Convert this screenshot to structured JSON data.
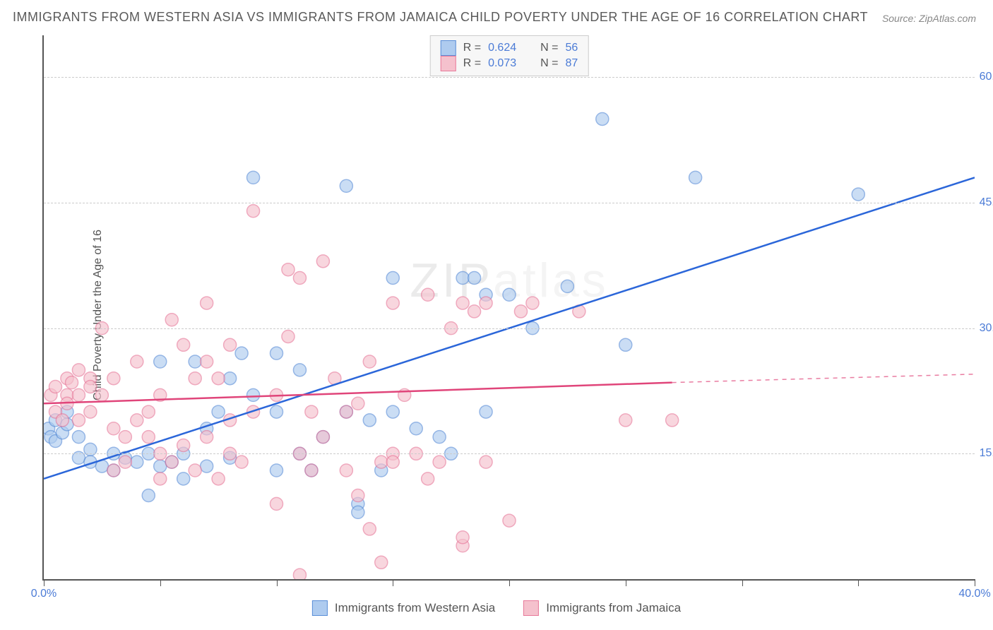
{
  "title": "IMMIGRANTS FROM WESTERN ASIA VS IMMIGRANTS FROM JAMAICA CHILD POVERTY UNDER THE AGE OF 16 CORRELATION CHART",
  "source": "Source: ZipAtlas.com",
  "ylabel": "Child Poverty Under the Age of 16",
  "watermark_zip": "ZIP",
  "watermark_atlas": "atlas",
  "chart": {
    "type": "scatter",
    "xlim": [
      0,
      40
    ],
    "ylim": [
      0,
      65
    ],
    "xtick_positions": [
      0,
      5,
      10,
      15,
      20,
      25,
      30,
      35,
      40
    ],
    "xtick_labels_shown": {
      "0": "0.0%",
      "40": "40.0%"
    },
    "ytick_positions": [
      15,
      30,
      45,
      60
    ],
    "ytick_labels": [
      "15.0%",
      "30.0%",
      "45.0%",
      "60.0%"
    ],
    "background_color": "#ffffff",
    "grid_color": "#cccccc",
    "axis_color": "#555555",
    "series": [
      {
        "name": "Immigrants from Western Asia",
        "marker_fill": "#aecbef",
        "marker_stroke": "#5b8fd8",
        "marker_opacity": 0.65,
        "marker_radius": 9,
        "line_color": "#2b66d9",
        "line_width": 2.5,
        "R": 0.624,
        "N": 56,
        "regression": {
          "x1": 0,
          "y1": 12,
          "x2": 40,
          "y2": 48
        },
        "points": [
          [
            0.2,
            18
          ],
          [
            0.3,
            17
          ],
          [
            0.5,
            19
          ],
          [
            0.5,
            16.5
          ],
          [
            0.8,
            17.5
          ],
          [
            1,
            18.5
          ],
          [
            1,
            20
          ],
          [
            1.5,
            17
          ],
          [
            1.5,
            14.5
          ],
          [
            2,
            15.5
          ],
          [
            2,
            14
          ],
          [
            2.5,
            13.5
          ],
          [
            3,
            15
          ],
          [
            3,
            13
          ],
          [
            3.5,
            14.5
          ],
          [
            4,
            14
          ],
          [
            4.5,
            15
          ],
          [
            4.5,
            10
          ],
          [
            5,
            13.5
          ],
          [
            5,
            26
          ],
          [
            5.5,
            14
          ],
          [
            6,
            12
          ],
          [
            6,
            15
          ],
          [
            6.5,
            26
          ],
          [
            7,
            13.5
          ],
          [
            7,
            18
          ],
          [
            7.5,
            20
          ],
          [
            8,
            14.5
          ],
          [
            8,
            24
          ],
          [
            8.5,
            27
          ],
          [
            9,
            22
          ],
          [
            9,
            48
          ],
          [
            10,
            20
          ],
          [
            10,
            27
          ],
          [
            10,
            13
          ],
          [
            11,
            25
          ],
          [
            11,
            15
          ],
          [
            11.5,
            13
          ],
          [
            12,
            17
          ],
          [
            13,
            47
          ],
          [
            13,
            20
          ],
          [
            13.5,
            9
          ],
          [
            13.5,
            8
          ],
          [
            14,
            19
          ],
          [
            14.5,
            13
          ],
          [
            15,
            20
          ],
          [
            15,
            36
          ],
          [
            16,
            18
          ],
          [
            17,
            17
          ],
          [
            17.5,
            15
          ],
          [
            18,
            36
          ],
          [
            18.5,
            36
          ],
          [
            19,
            34
          ],
          [
            19,
            20
          ],
          [
            20,
            34
          ],
          [
            21,
            30
          ],
          [
            22.5,
            35
          ],
          [
            24,
            55
          ],
          [
            25,
            28
          ],
          [
            28,
            48
          ],
          [
            35,
            46
          ]
        ]
      },
      {
        "name": "Immigrants from Jamaica",
        "marker_fill": "#f5c1cd",
        "marker_stroke": "#e87a9b",
        "marker_opacity": 0.65,
        "marker_radius": 9,
        "line_color": "#e0457a",
        "line_width": 2.5,
        "R": 0.073,
        "N": 87,
        "regression": {
          "x1": 0,
          "y1": 21,
          "x2": 27,
          "y2": 23.5
        },
        "regression_dashed": {
          "x1": 27,
          "y1": 23.5,
          "x2": 40,
          "y2": 24.5
        },
        "points": [
          [
            0.3,
            22
          ],
          [
            0.5,
            20
          ],
          [
            0.5,
            23
          ],
          [
            0.8,
            19
          ],
          [
            1,
            22
          ],
          [
            1,
            24
          ],
          [
            1,
            21
          ],
          [
            1.2,
            23.5
          ],
          [
            1.5,
            25
          ],
          [
            1.5,
            22
          ],
          [
            1.5,
            19
          ],
          [
            2,
            20
          ],
          [
            2,
            24
          ],
          [
            2,
            23
          ],
          [
            2.5,
            22
          ],
          [
            2.5,
            30
          ],
          [
            3,
            24
          ],
          [
            3,
            18
          ],
          [
            3,
            13
          ],
          [
            3.5,
            17
          ],
          [
            3.5,
            14
          ],
          [
            4,
            26
          ],
          [
            4,
            19
          ],
          [
            4.5,
            20
          ],
          [
            4.5,
            17
          ],
          [
            5,
            15
          ],
          [
            5,
            12
          ],
          [
            5,
            22
          ],
          [
            5.5,
            31
          ],
          [
            5.5,
            14
          ],
          [
            6,
            28
          ],
          [
            6,
            16
          ],
          [
            6.5,
            24
          ],
          [
            6.5,
            13
          ],
          [
            7,
            26
          ],
          [
            7,
            17
          ],
          [
            7,
            33
          ],
          [
            7.5,
            24
          ],
          [
            7.5,
            12
          ],
          [
            8,
            15
          ],
          [
            8,
            28
          ],
          [
            8,
            19
          ],
          [
            8.5,
            14
          ],
          [
            9,
            20
          ],
          [
            9,
            44
          ],
          [
            10,
            22
          ],
          [
            10,
            9
          ],
          [
            10.5,
            29
          ],
          [
            10.5,
            37
          ],
          [
            11,
            15
          ],
          [
            11,
            36
          ],
          [
            11,
            0.5
          ],
          [
            11.5,
            20
          ],
          [
            11.5,
            13
          ],
          [
            12,
            17
          ],
          [
            12,
            38
          ],
          [
            12.5,
            24
          ],
          [
            13,
            13
          ],
          [
            13,
            20
          ],
          [
            13.5,
            10
          ],
          [
            13.5,
            21
          ],
          [
            14,
            6
          ],
          [
            14,
            26
          ],
          [
            14.5,
            14
          ],
          [
            14.5,
            2
          ],
          [
            15,
            15
          ],
          [
            15,
            33
          ],
          [
            15,
            14
          ],
          [
            15.5,
            22
          ],
          [
            16,
            15
          ],
          [
            16.5,
            12
          ],
          [
            16.5,
            34
          ],
          [
            17,
            14
          ],
          [
            17.5,
            30
          ],
          [
            18,
            4
          ],
          [
            18,
            5
          ],
          [
            18,
            33
          ],
          [
            18.5,
            32
          ],
          [
            19,
            14
          ],
          [
            19,
            33
          ],
          [
            20,
            7
          ],
          [
            20.5,
            32
          ],
          [
            21,
            33
          ],
          [
            23,
            32
          ],
          [
            25,
            19
          ],
          [
            27,
            19
          ]
        ]
      }
    ],
    "legend_box": {
      "rows": [
        {
          "swatch_fill": "#aecbef",
          "swatch_stroke": "#5b8fd8",
          "r_label": "R =",
          "r_val": "0.624",
          "n_label": "N =",
          "n_val": "56"
        },
        {
          "swatch_fill": "#f5c1cd",
          "swatch_stroke": "#e87a9b",
          "r_label": "R =",
          "r_val": "0.073",
          "n_label": "N =",
          "n_val": "87"
        }
      ]
    },
    "bottom_legend": [
      {
        "swatch_fill": "#aecbef",
        "swatch_stroke": "#5b8fd8",
        "label": "Immigrants from Western Asia"
      },
      {
        "swatch_fill": "#f5c1cd",
        "swatch_stroke": "#e87a9b",
        "label": "Immigrants from Jamaica"
      }
    ]
  }
}
